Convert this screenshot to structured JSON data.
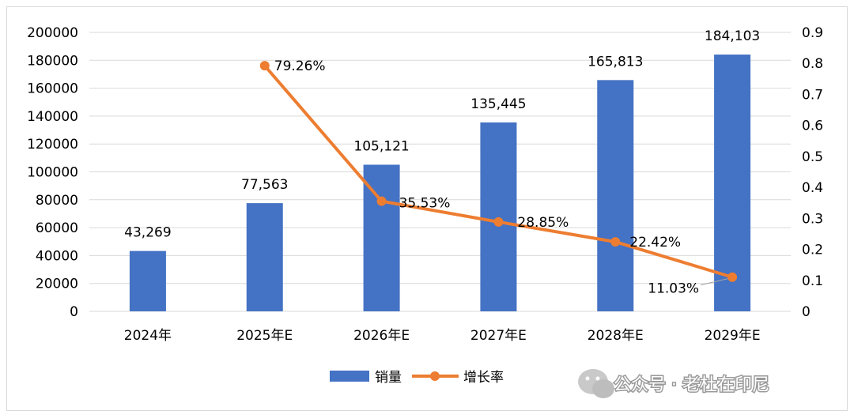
{
  "chart_data": {
    "type": "bar+line",
    "categories": [
      "2024年",
      "2025年E",
      "2026年E",
      "2027年E",
      "2028年E",
      "2029年E"
    ],
    "bar_series": {
      "name": "销量",
      "color": "#4472C4",
      "values": [
        43269,
        77563,
        105121,
        135445,
        165813,
        184103
      ],
      "labels": [
        "43,269",
        "77,563",
        "105,121",
        "135,445",
        "165,813",
        "184,103"
      ]
    },
    "line_series": {
      "name": "增长率",
      "color": "#ED7D31",
      "values": [
        null,
        0.7926,
        0.3553,
        0.2885,
        0.2242,
        0.1103
      ],
      "labels": [
        "",
        "79.26%",
        "35.53%",
        "28.85%",
        "22.42%",
        "11.03%"
      ]
    },
    "y_left": {
      "min": 0,
      "max": 200000,
      "ticks": [
        "0",
        "20000",
        "40000",
        "60000",
        "80000",
        "100000",
        "120000",
        "140000",
        "160000",
        "180000",
        "200000"
      ]
    },
    "y_right": {
      "min": 0,
      "max": 0.9,
      "ticks": [
        "0",
        "0.1",
        "0.2",
        "0.3",
        "0.4",
        "0.5",
        "0.6",
        "0.7",
        "0.8",
        "0.9"
      ]
    },
    "grid": true,
    "legend": "bottom-center"
  },
  "watermark": {
    "text": "公众号 · 老杜在印尼",
    "icon": "wechat-icon"
  }
}
